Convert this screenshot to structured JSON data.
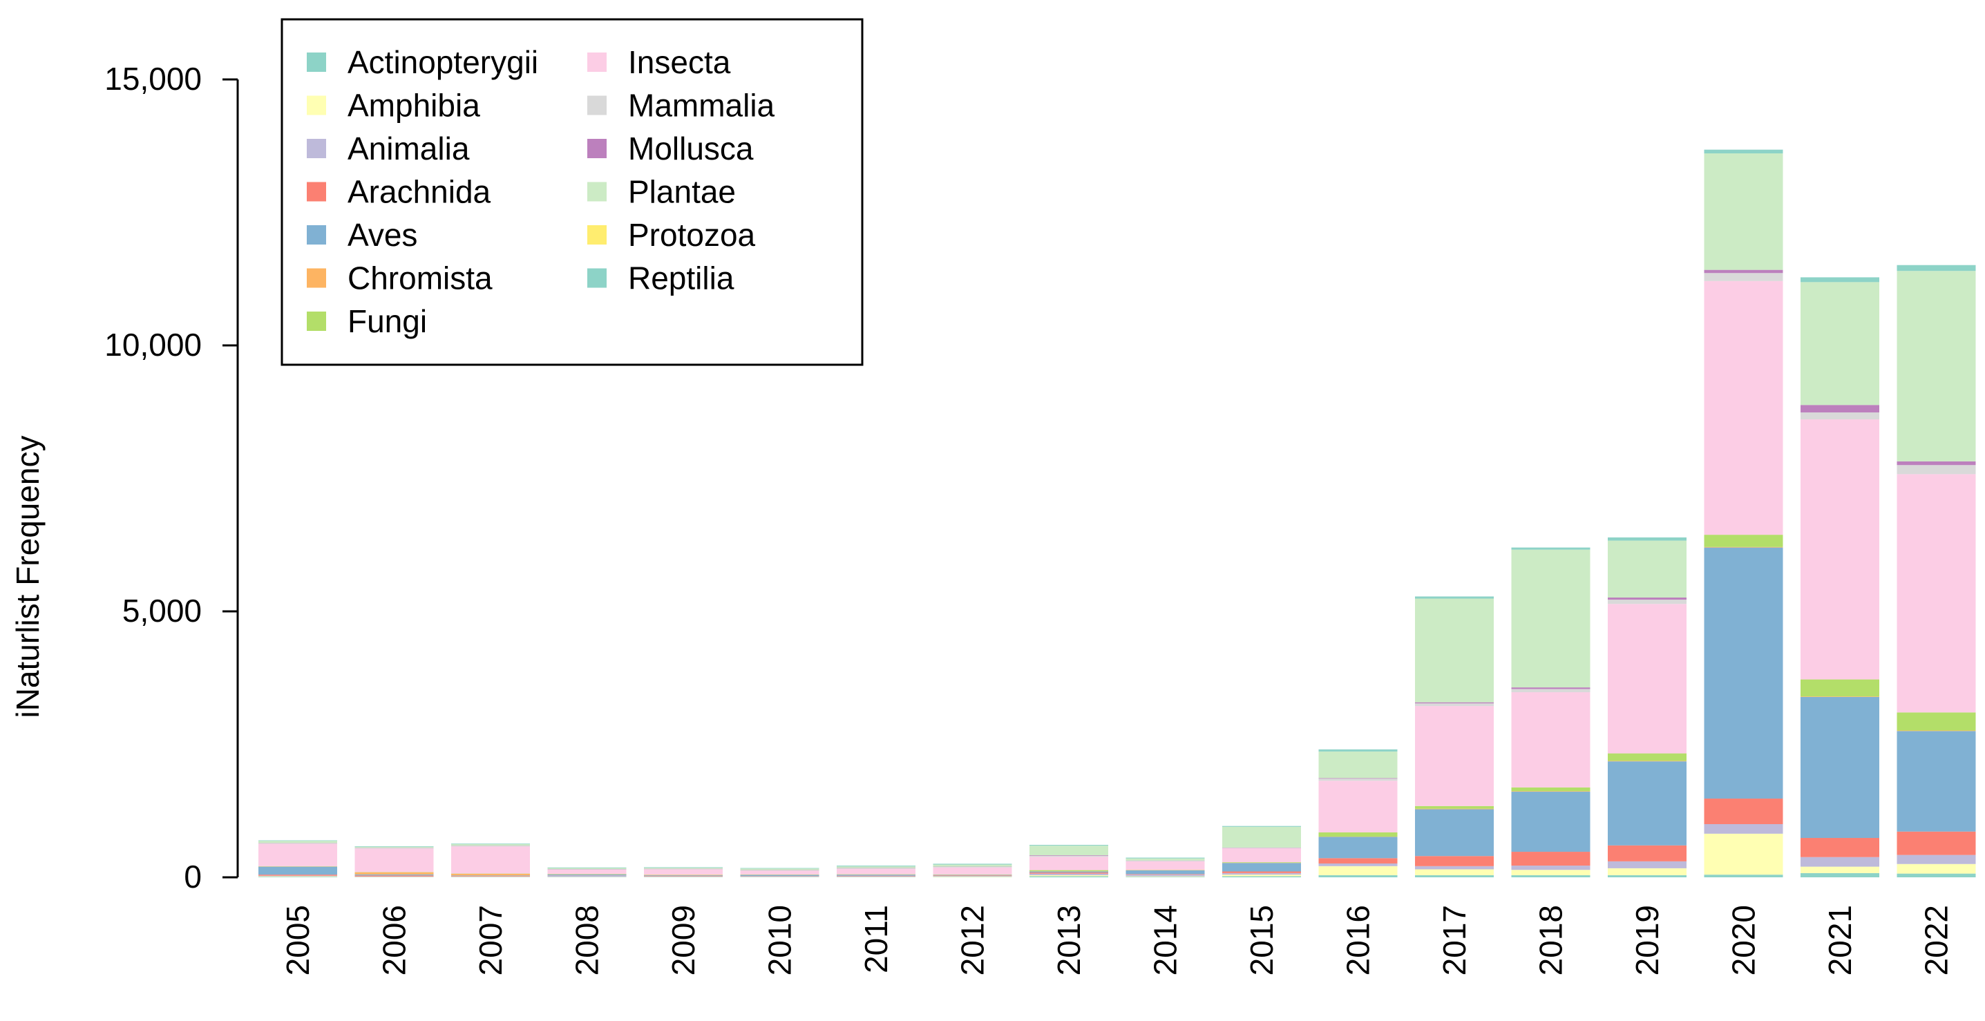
{
  "chart_data": {
    "type": "bar",
    "stacked": true,
    "title": "",
    "xlabel": "",
    "ylabel": "iNaturlist Frequency",
    "ylim": [
      0,
      15000
    ],
    "yticks": [
      0,
      5000,
      10000,
      15000
    ],
    "ytick_labels": [
      "0",
      "5,000",
      "10,000",
      "15,000"
    ],
    "legend_position": "top-left",
    "categories": [
      "2005",
      "2006",
      "2007",
      "2008",
      "2009",
      "2010",
      "2011",
      "2012",
      "2013",
      "2014",
      "2015",
      "2016",
      "2017",
      "2018",
      "2019",
      "2020",
      "2021",
      "2022"
    ],
    "series": [
      {
        "name": "Actinopterygii",
        "color": "#8DD3C7",
        "values": [
          10,
          5,
          5,
          5,
          5,
          5,
          5,
          5,
          20,
          10,
          20,
          40,
          40,
          40,
          40,
          50,
          80,
          70
        ]
      },
      {
        "name": "Amphibia",
        "color": "#FFFFB3",
        "values": [
          10,
          5,
          5,
          5,
          5,
          5,
          5,
          10,
          20,
          10,
          30,
          170,
          110,
          100,
          130,
          770,
          120,
          180
        ]
      },
      {
        "name": "Animalia",
        "color": "#BEBADA",
        "values": [
          10,
          5,
          5,
          20,
          10,
          10,
          10,
          10,
          30,
          30,
          30,
          50,
          60,
          80,
          130,
          180,
          180,
          170
        ]
      },
      {
        "name": "Arachnida",
        "color": "#FB8072",
        "values": [
          20,
          20,
          10,
          5,
          10,
          5,
          10,
          10,
          20,
          10,
          30,
          100,
          190,
          260,
          300,
          480,
          360,
          440
        ]
      },
      {
        "name": "Aves",
        "color": "#80B1D3",
        "values": [
          150,
          20,
          10,
          20,
          10,
          20,
          20,
          10,
          20,
          70,
          160,
          400,
          880,
          1130,
          1580,
          4720,
          2650,
          1890
        ]
      },
      {
        "name": "Chromista",
        "color": "#FDB462",
        "values": [
          5,
          40,
          30,
          5,
          5,
          5,
          5,
          5,
          5,
          5,
          5,
          5,
          10,
          10,
          10,
          10,
          10,
          10
        ]
      },
      {
        "name": "Fungi",
        "color": "#B3DE69",
        "values": [
          5,
          5,
          5,
          5,
          5,
          5,
          5,
          5,
          20,
          5,
          10,
          80,
          50,
          70,
          140,
          230,
          320,
          340
        ]
      },
      {
        "name": "Insecta",
        "color": "#FCCDE5",
        "values": [
          420,
          440,
          510,
          80,
          100,
          70,
          100,
          130,
          250,
          160,
          260,
          970,
          1880,
          1790,
          2810,
          4770,
          4890,
          4480
        ]
      },
      {
        "name": "Mammalia",
        "color": "#D9D9D9",
        "values": [
          10,
          10,
          10,
          5,
          5,
          5,
          10,
          10,
          20,
          10,
          10,
          40,
          50,
          60,
          80,
          150,
          130,
          170
        ]
      },
      {
        "name": "Mollusca",
        "color": "#BC80BD",
        "values": [
          5,
          5,
          5,
          5,
          5,
          5,
          5,
          5,
          10,
          5,
          5,
          10,
          20,
          30,
          40,
          60,
          140,
          70
        ]
      },
      {
        "name": "Plantae",
        "color": "#CCEBC5",
        "values": [
          40,
          20,
          30,
          20,
          20,
          30,
          30,
          40,
          180,
          40,
          390,
          500,
          1950,
          2590,
          1070,
          2190,
          2310,
          3580
        ]
      },
      {
        "name": "Protozoa",
        "color": "#FFED6F",
        "values": [
          0,
          0,
          0,
          0,
          0,
          0,
          0,
          0,
          0,
          0,
          0,
          0,
          0,
          0,
          0,
          0,
          0,
          0
        ]
      },
      {
        "name": "Reptilia",
        "color": "#8DD3C7",
        "values": [
          10,
          10,
          10,
          10,
          10,
          10,
          15,
          15,
          15,
          15,
          15,
          40,
          40,
          40,
          60,
          70,
          90,
          110
        ]
      }
    ]
  }
}
